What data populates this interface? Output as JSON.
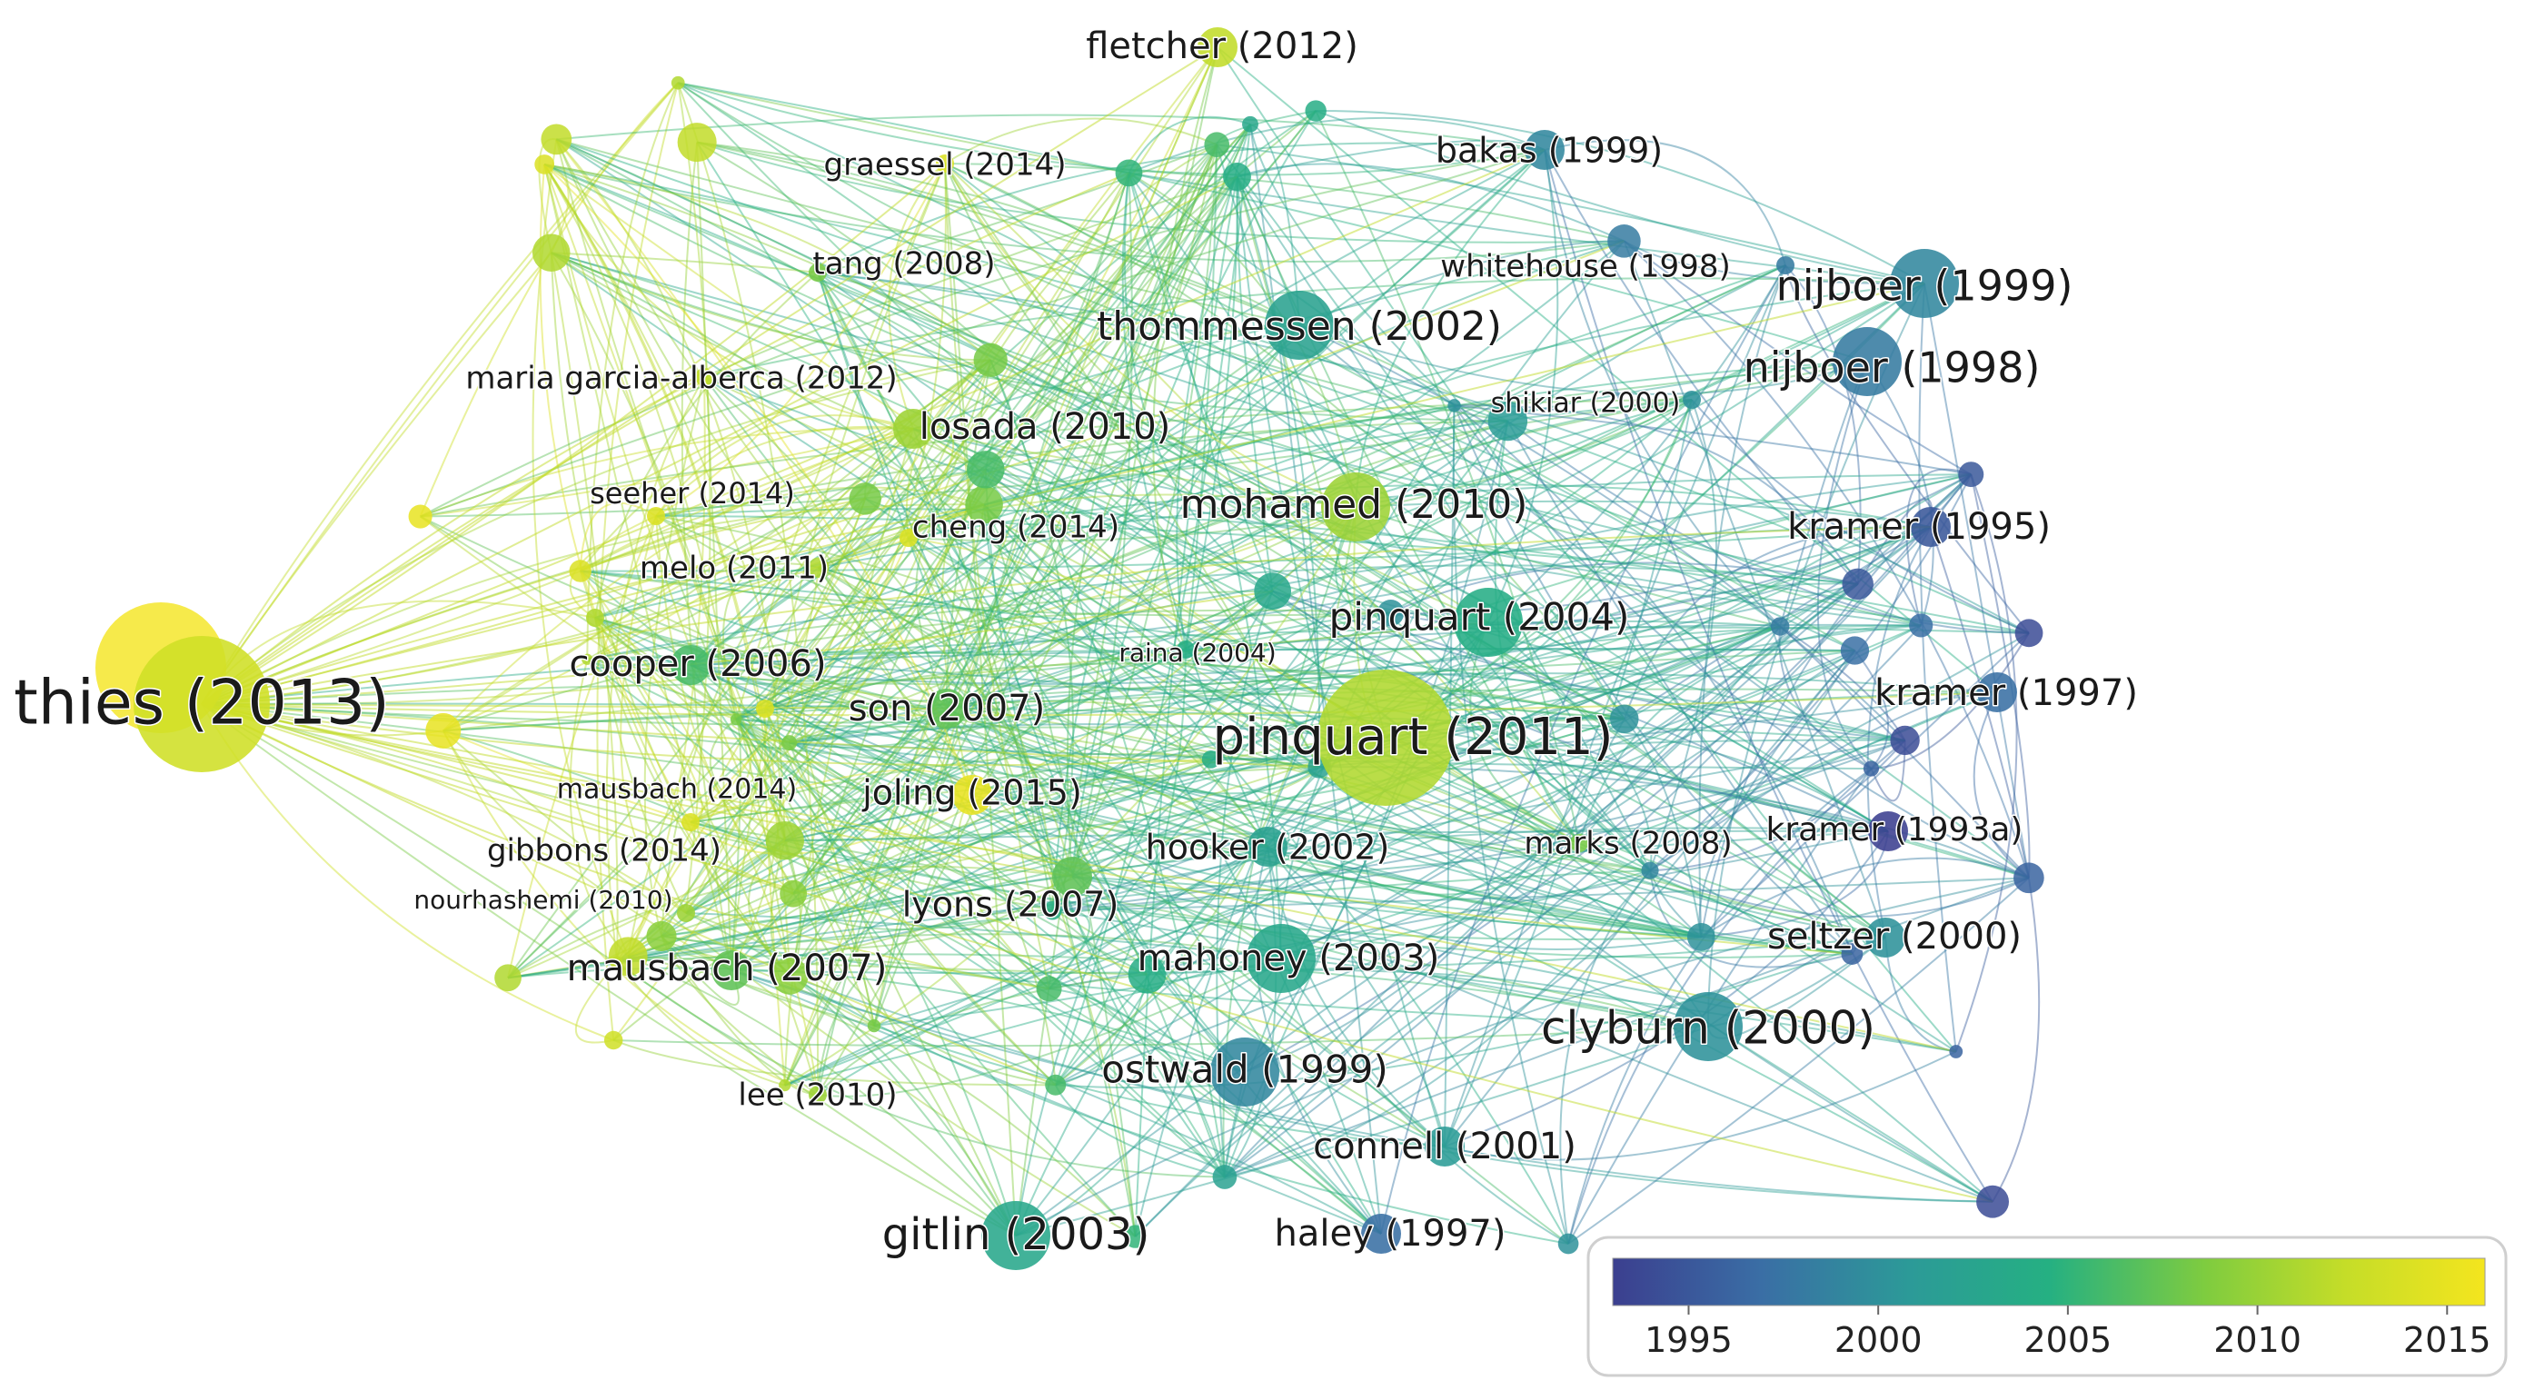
{
  "diagram": {
    "type": "citation-network-overlay",
    "color_scale": {
      "min": 1993,
      "max": 2016,
      "stops": [
        "#3b3f8f",
        "#3a6ea5",
        "#2c9a98",
        "#25b082",
        "#7fcc3f",
        "#c5dd28",
        "#f4e51e"
      ]
    },
    "nodes": [
      {
        "id": "thies2013",
        "label": "thies (2013)",
        "year": 2013,
        "size": "large"
      },
      {
        "id": "pinquart2011",
        "label": "pinquart (2011)",
        "year": 2011,
        "size": "large"
      },
      {
        "id": "nijboer1999",
        "label": "nijboer (1999)",
        "year": 1999,
        "size": "medium"
      },
      {
        "id": "nijboer1998",
        "label": "nijboer (1998)",
        "year": 1998,
        "size": "medium"
      },
      {
        "id": "clyburn2000",
        "label": "clyburn (2000)",
        "year": 2000,
        "size": "medium"
      },
      {
        "id": "gitlin2003",
        "label": "gitlin (2003)",
        "year": 2003,
        "size": "medium"
      },
      {
        "id": "fletcher2012",
        "label": "fletcher (2012)",
        "year": 2012,
        "size": "small"
      },
      {
        "id": "bakas1999",
        "label": "bakas (1999)",
        "year": 1999,
        "size": "small"
      },
      {
        "id": "graessel2014",
        "label": "graessel (2014)",
        "year": 2014,
        "size": "tiny"
      },
      {
        "id": "whitehouse1998",
        "label": "whitehouse (1998)",
        "year": 1998,
        "size": "tiny"
      },
      {
        "id": "tang2008",
        "label": "tang (2008)",
        "year": 2008,
        "size": "tiny"
      },
      {
        "id": "thommessen2002",
        "label": "thommessen (2002)",
        "year": 2002,
        "size": "medium"
      },
      {
        "id": "mariagarcia2012",
        "label": "maria garcia-alberca (2012)",
        "year": 2012,
        "size": "tiny"
      },
      {
        "id": "shikiar2000",
        "label": "shikiar (2000)",
        "year": 2000,
        "size": "tiny"
      },
      {
        "id": "losada2010",
        "label": "losada (2010)",
        "year": 2010,
        "size": "small"
      },
      {
        "id": "seeher2014",
        "label": "seeher (2014)",
        "year": 2014,
        "size": "tiny"
      },
      {
        "id": "mohamed2010",
        "label": "mohamed (2010)",
        "year": 2010,
        "size": "medium"
      },
      {
        "id": "kramer1995",
        "label": "kramer (1995)",
        "year": 1995,
        "size": "small"
      },
      {
        "id": "cheng2014",
        "label": "cheng (2014)",
        "year": 2014,
        "size": "tiny"
      },
      {
        "id": "melo2011",
        "label": "melo (2011)",
        "year": 2011,
        "size": "tiny"
      },
      {
        "id": "pinquart2004",
        "label": "pinquart (2004)",
        "year": 2004,
        "size": "medium"
      },
      {
        "id": "raina2004",
        "label": "raina (2004)",
        "year": 2004,
        "size": "tiny"
      },
      {
        "id": "cooper2006",
        "label": "cooper (2006)",
        "year": 2006,
        "size": "small"
      },
      {
        "id": "kramer1997",
        "label": "kramer (1997)",
        "year": 1997,
        "size": "small"
      },
      {
        "id": "son2007",
        "label": "son (2007)",
        "year": 2007,
        "size": "small"
      },
      {
        "id": "mausbach2014",
        "label": "mausbach (2014)",
        "year": 2014,
        "size": "tiny"
      },
      {
        "id": "joling2015",
        "label": "joling (2015)",
        "year": 2015,
        "size": "small"
      },
      {
        "id": "gibbons2014",
        "label": "gibbons (2014)",
        "year": 2014,
        "size": "tiny"
      },
      {
        "id": "hooker2002",
        "label": "hooker (2002)",
        "year": 2002,
        "size": "small"
      },
      {
        "id": "marks2008",
        "label": "marks (2008)",
        "year": 2008,
        "size": "tiny"
      },
      {
        "id": "kramer1993a",
        "label": "kramer (1993a)",
        "year": 1993,
        "size": "small"
      },
      {
        "id": "nourhashemi2010",
        "label": "nourhashemi (2010)",
        "year": 2010,
        "size": "tiny"
      },
      {
        "id": "lyons2007",
        "label": "lyons (2007)",
        "year": 2007,
        "size": "small"
      },
      {
        "id": "seltzer2000",
        "label": "seltzer (2000)",
        "year": 2000,
        "size": "small"
      },
      {
        "id": "mausbach2007",
        "label": "mausbach (2007)",
        "year": 2007,
        "size": "small"
      },
      {
        "id": "mahoney2003",
        "label": "mahoney (2003)",
        "year": 2003,
        "size": "medium"
      },
      {
        "id": "ostwald1999",
        "label": "ostwald (1999)",
        "year": 1999,
        "size": "medium"
      },
      {
        "id": "lee2010",
        "label": "lee (2010)",
        "year": 2010,
        "size": "tiny"
      },
      {
        "id": "connell2001",
        "label": "connell (2001)",
        "year": 2001,
        "size": "small"
      },
      {
        "id": "haley1997",
        "label": "haley (1997)",
        "year": 1997,
        "size": "small"
      }
    ],
    "legend": {
      "ticks": [
        "1995",
        "2000",
        "2005",
        "2010",
        "2015"
      ]
    }
  }
}
